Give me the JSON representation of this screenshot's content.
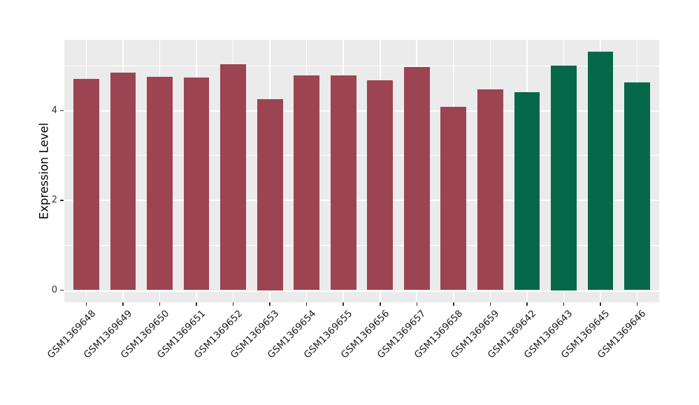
{
  "chart_data": {
    "type": "bar",
    "title": "",
    "xlabel": "",
    "ylabel": "Expression Level",
    "categories": [
      "GSM1369648",
      "GSM1369649",
      "GSM1369650",
      "GSM1369651",
      "GSM1369652",
      "GSM1369653",
      "GSM1369654",
      "GSM1369655",
      "GSM1369656",
      "GSM1369657",
      "GSM1369658",
      "GSM1369659",
      "GSM1369642",
      "GSM1369643",
      "GSM1369645",
      "GSM1369646"
    ],
    "values": [
      4.71,
      4.85,
      4.76,
      4.74,
      5.04,
      4.25,
      4.78,
      4.79,
      4.68,
      4.97,
      4.08,
      4.48,
      4.41,
      5.0,
      5.32,
      4.63
    ],
    "groups": [
      "a",
      "a",
      "a",
      "a",
      "a",
      "a",
      "a",
      "a",
      "a",
      "a",
      "a",
      "a",
      "b",
      "b",
      "b",
      "b"
    ],
    "group_colors": {
      "a": "#9C4452",
      "b": "#046849"
    },
    "yticks": [
      0,
      2,
      4
    ],
    "ytick_labels": [
      "0",
      "2",
      "4"
    ],
    "y_minor_gridlines": [
      1,
      3,
      5
    ],
    "ylim": [
      -0.23,
      5.58
    ],
    "legend": "none",
    "grid": "white major and minor horizontal lines, white vertical line at each bar center",
    "panel_bg": "#EBEBEB",
    "grid_color": "#FFFFFF",
    "axis_text_color": "#333333"
  }
}
